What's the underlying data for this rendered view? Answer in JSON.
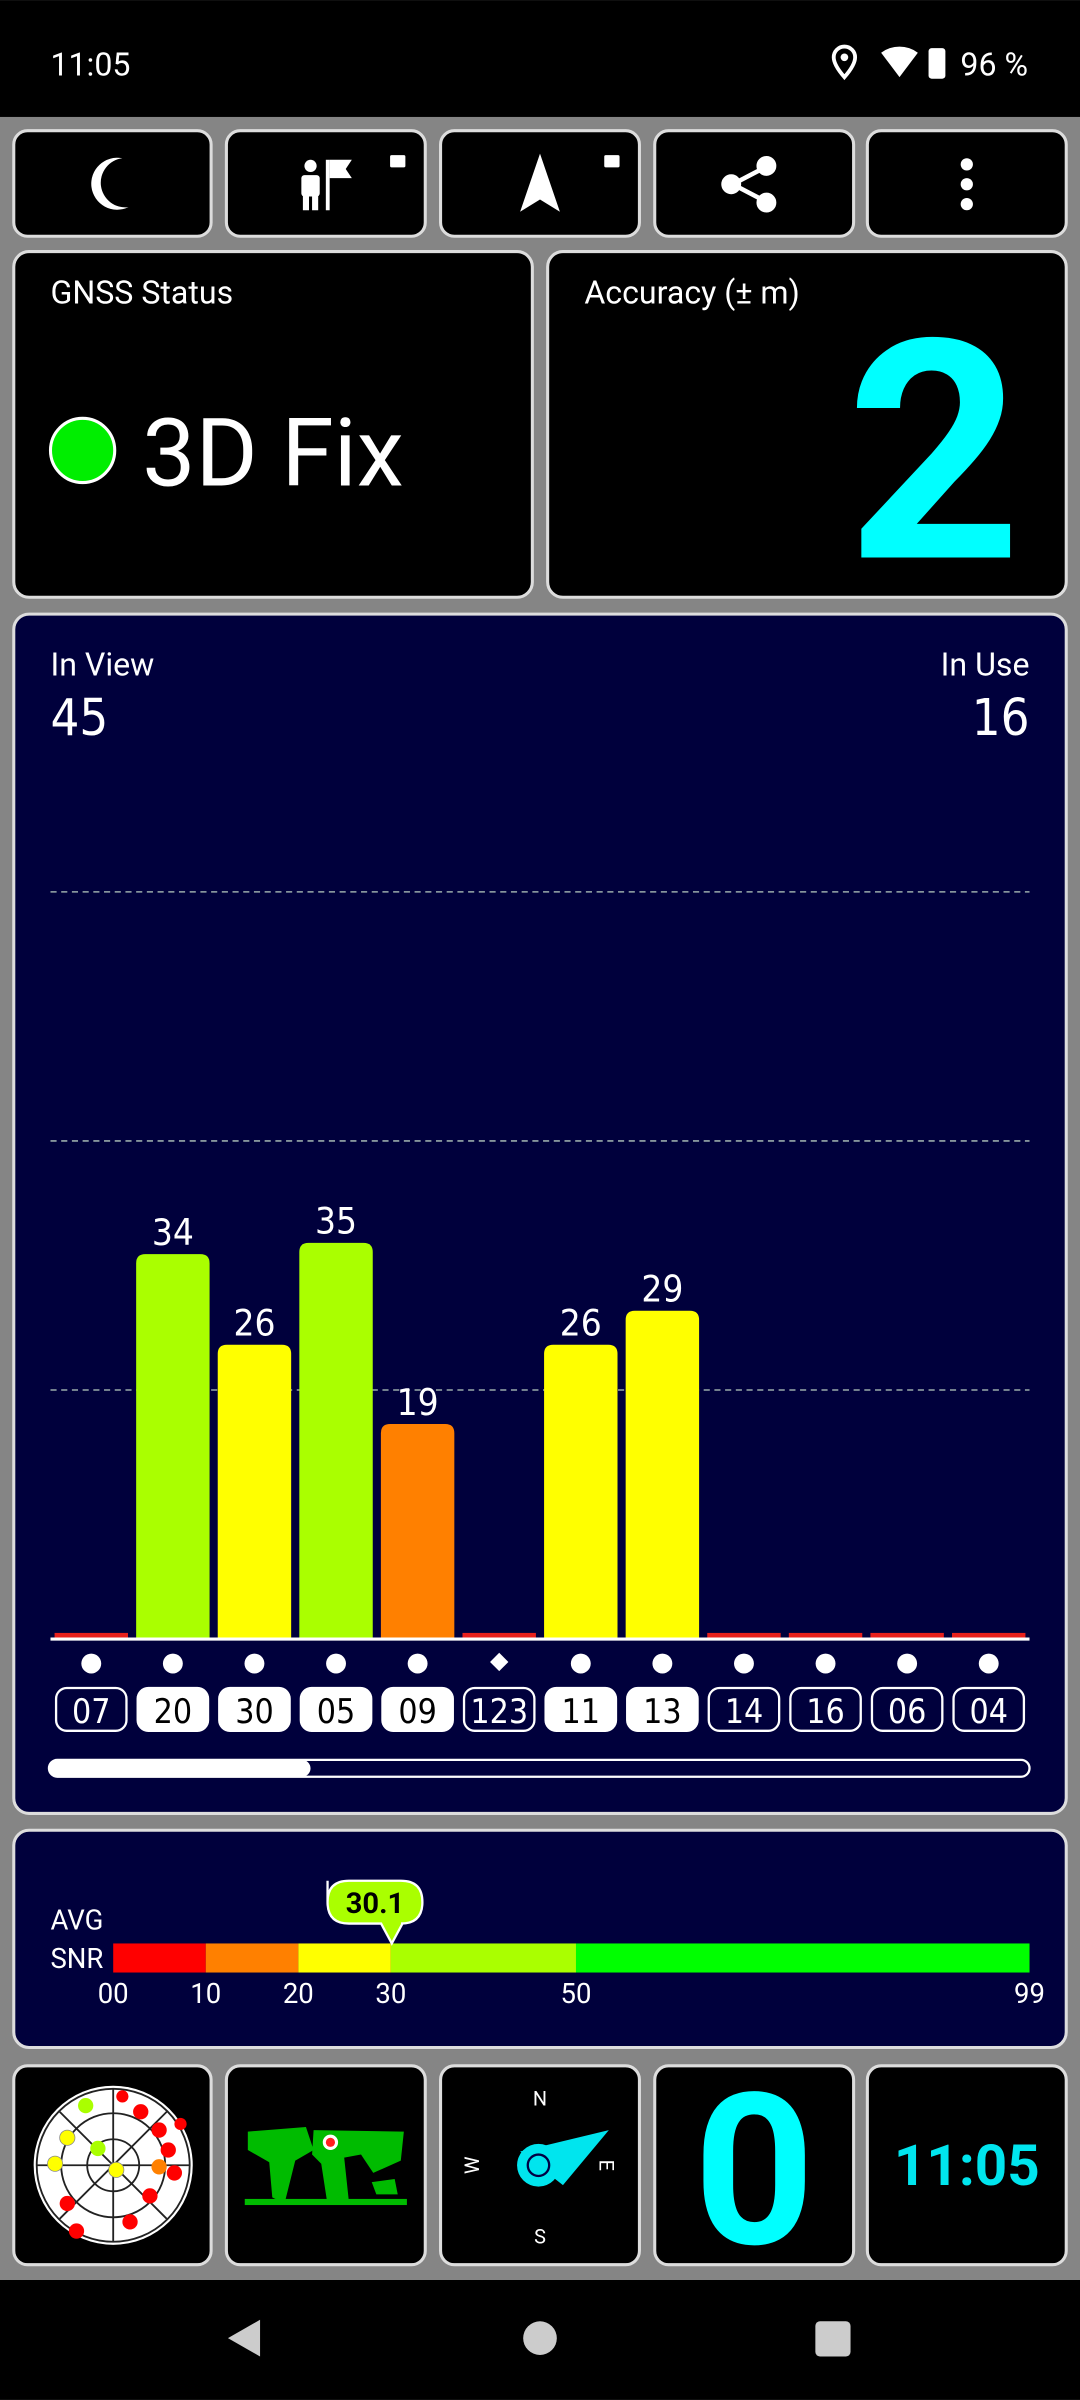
{
  "status_bar": {
    "time": "11:05",
    "battery": "96 %"
  },
  "gnss_status": {
    "title": "GNSS Status",
    "fix": "3D Fix"
  },
  "accuracy": {
    "title": "Accuracy (± m)",
    "value": "2"
  },
  "satellites": {
    "in_view_label": "In View",
    "in_view": 45,
    "in_use_label": "In Use",
    "in_use": 16
  },
  "chart_data": {
    "type": "bar",
    "categories": [
      "07",
      "20",
      "30",
      "05",
      "09",
      "123",
      "11",
      "13",
      "14",
      "16",
      "06",
      "04"
    ],
    "values": [
      null,
      34,
      26,
      35,
      19,
      null,
      26,
      29,
      null,
      null,
      null,
      null
    ],
    "colors": [
      "#e8201c",
      "#aaff00",
      "#ffff00",
      "#aaff00",
      "#ff8000",
      "#e8201c",
      "#ffff00",
      "#ffff00",
      "#e8201c",
      "#e8201c",
      "#e8201c",
      "#e8201c"
    ],
    "markers": [
      "dot",
      "dot",
      "dot",
      "dot",
      "dot",
      "diamond",
      "dot",
      "dot",
      "dot",
      "dot",
      "dot",
      "dot"
    ],
    "used": [
      false,
      true,
      true,
      true,
      true,
      false,
      true,
      true,
      false,
      false,
      false,
      false
    ],
    "ylim": [
      0,
      80
    ],
    "grid_lines": [
      22,
      44,
      66
    ],
    "grid": true
  },
  "avg_snr": {
    "label_top": "AVG",
    "label_bottom": "SNR",
    "value": 30.1,
    "lim": [
      0,
      99
    ],
    "ticks": [
      {
        "value": 0,
        "label": "00"
      },
      10,
      20,
      30,
      50,
      99
    ],
    "segments": [
      {
        "from": 0,
        "to": 10,
        "color": "#ff0000"
      },
      {
        "from": 10,
        "to": 20,
        "color": "#ff8000"
      },
      {
        "from": 20,
        "to": 30,
        "color": "#ffff00"
      },
      {
        "from": 30,
        "to": 50,
        "color": "#aaff00"
      },
      {
        "from": 50,
        "to": 99,
        "color": "#00ff00"
      }
    ]
  },
  "tiles": {
    "speed": "0",
    "clock": "11:05",
    "compass": {
      "n": "N",
      "e": "E",
      "s": "S",
      "w": "W"
    }
  }
}
